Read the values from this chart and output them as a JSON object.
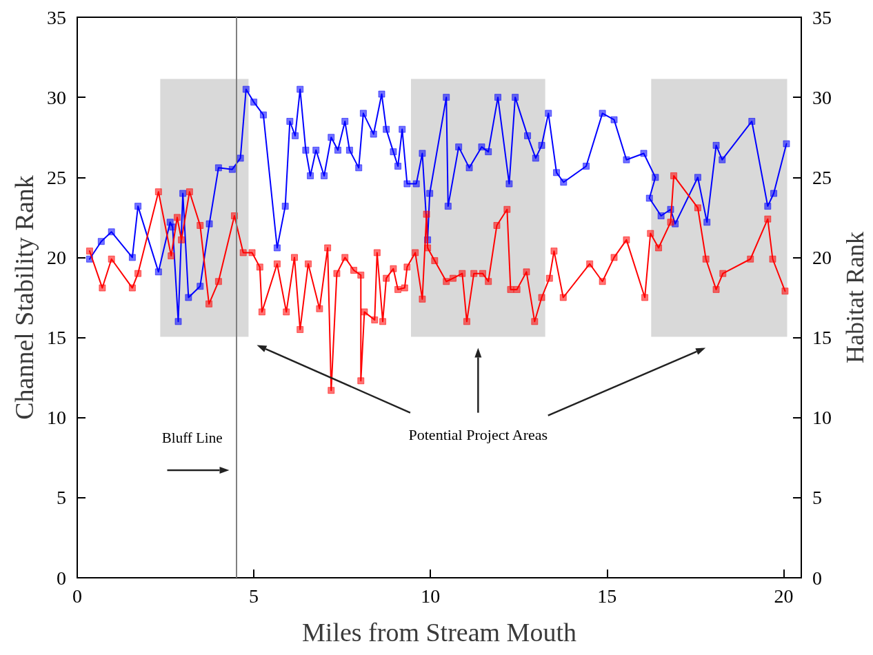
{
  "chart_data": {
    "type": "line",
    "xlabel": "Miles from Stream Mouth",
    "ylabel": "Channel Stability Rank",
    "y2label": "Habitat Rank",
    "xlim": [
      0,
      20.5
    ],
    "xticks": [
      0,
      5,
      10,
      15,
      20
    ],
    "ylim": [
      0,
      35
    ],
    "yticks": [
      0,
      5,
      10,
      15,
      20,
      25,
      30,
      35
    ],
    "y2lim": [
      0,
      35
    ],
    "y2ticks": [
      0,
      5,
      10,
      15,
      20,
      25,
      30,
      35
    ],
    "marker": "square",
    "line_style": "solid",
    "series": [
      {
        "color": "#0000ff",
        "x": [
          0.35,
          0.68,
          0.97,
          1.56,
          1.72,
          2.3,
          2.63,
          2.7,
          2.86,
          2.99,
          3.15,
          3.48,
          3.74,
          4.0,
          4.39,
          4.62,
          4.78,
          5.0,
          5.27,
          5.66,
          5.89,
          6.02,
          6.17,
          6.31,
          6.47,
          6.6,
          6.76,
          6.99,
          7.19,
          7.38,
          7.58,
          7.71,
          7.97,
          8.1,
          8.39,
          8.62,
          8.75,
          8.95,
          9.08,
          9.2,
          9.34,
          9.6,
          9.77,
          9.92,
          9.98,
          10.45,
          10.5,
          10.8,
          11.1,
          11.45,
          11.64,
          11.91,
          12.23,
          12.4,
          12.75,
          12.98,
          13.15,
          13.34,
          13.57,
          13.77,
          14.41,
          14.87,
          15.2,
          15.55,
          16.04,
          16.37,
          16.2,
          16.53,
          16.8,
          16.93,
          17.57,
          17.83,
          18.09,
          18.26,
          19.1,
          19.55,
          19.72,
          20.08
        ],
        "values": [
          19.9,
          21.0,
          21.6,
          20.0,
          23.2,
          19.1,
          22.2,
          21.9,
          16.0,
          24.0,
          17.5,
          18.2,
          22.1,
          25.6,
          25.5,
          26.2,
          30.5,
          29.7,
          28.9,
          20.6,
          23.2,
          28.5,
          27.6,
          30.5,
          26.7,
          25.1,
          26.7,
          25.1,
          27.5,
          26.7,
          28.5,
          26.7,
          25.6,
          29.0,
          27.7,
          30.2,
          28.0,
          26.6,
          25.7,
          28.0,
          24.6,
          24.6,
          26.5,
          21.1,
          24.0,
          30.0,
          23.2,
          26.9,
          25.6,
          26.9,
          26.6,
          30.0,
          24.6,
          30.0,
          27.6,
          26.2,
          27.0,
          29.0,
          25.3,
          24.7,
          25.7,
          29.0,
          28.6,
          26.1,
          26.5,
          25.0,
          23.7,
          22.6,
          23.0,
          22.1,
          25.0,
          22.2,
          27.0,
          26.1,
          28.5,
          23.2,
          24.0,
          27.1
        ]
      },
      {
        "color": "#ff0000",
        "axis": "y2",
        "x": [
          0.35,
          0.71,
          0.97,
          1.56,
          1.72,
          2.3,
          2.66,
          2.83,
          2.95,
          3.18,
          3.48,
          3.73,
          4.0,
          4.45,
          4.7,
          4.95,
          5.17,
          5.23,
          5.66,
          5.92,
          6.15,
          6.31,
          6.54,
          6.86,
          7.09,
          7.19,
          7.35,
          7.58,
          7.83,
          8.03,
          8.03,
          8.13,
          8.42,
          8.49,
          8.65,
          8.75,
          8.95,
          9.08,
          9.27,
          9.34,
          9.57,
          9.77,
          9.89,
          9.92,
          10.12,
          10.45,
          10.64,
          10.9,
          11.03,
          11.23,
          11.48,
          11.64,
          11.88,
          12.17,
          12.27,
          12.45,
          12.72,
          12.95,
          13.15,
          13.37,
          13.5,
          13.76,
          14.51,
          14.87,
          15.2,
          15.55,
          16.07,
          16.23,
          16.46,
          16.8,
          16.89,
          17.57,
          17.8,
          18.09,
          18.28,
          19.06,
          19.55,
          19.69,
          20.04
        ],
        "values": [
          20.4,
          18.1,
          19.9,
          18.1,
          19.0,
          24.1,
          20.1,
          22.5,
          21.1,
          24.1,
          22.0,
          17.1,
          18.5,
          22.6,
          20.3,
          20.3,
          19.4,
          16.6,
          19.6,
          16.6,
          20.0,
          15.5,
          19.6,
          16.8,
          20.6,
          11.7,
          19.0,
          20.0,
          19.2,
          18.9,
          12.3,
          16.6,
          16.1,
          20.3,
          16.0,
          18.7,
          19.3,
          18.0,
          18.1,
          19.4,
          20.3,
          17.4,
          22.7,
          20.6,
          19.8,
          18.5,
          18.7,
          19.0,
          16.0,
          19.0,
          19.0,
          18.5,
          22.0,
          23.0,
          18.0,
          18.0,
          19.1,
          16.0,
          17.5,
          18.7,
          20.4,
          17.5,
          19.6,
          18.5,
          20.0,
          21.1,
          17.5,
          21.5,
          20.6,
          22.2,
          25.1,
          23.1,
          19.9,
          18.0,
          19.0,
          19.9,
          22.4,
          19.9,
          17.9
        ]
      }
    ],
    "ref_lines": [
      {
        "axis": "x",
        "value": 4.5,
        "label": "Bluff Line",
        "color": "#808080"
      }
    ],
    "bands": [
      {
        "axis": "x",
        "from": 2.35,
        "to": 4.85,
        "color": "#d9d9d9"
      },
      {
        "axis": "x",
        "from": 9.45,
        "to": 13.25,
        "color": "#d9d9d9"
      },
      {
        "axis": "x",
        "from": 16.25,
        "to": 20.1,
        "color": "#d9d9d9"
      }
    ],
    "annotations": [
      "Potential Project Areas"
    ]
  }
}
